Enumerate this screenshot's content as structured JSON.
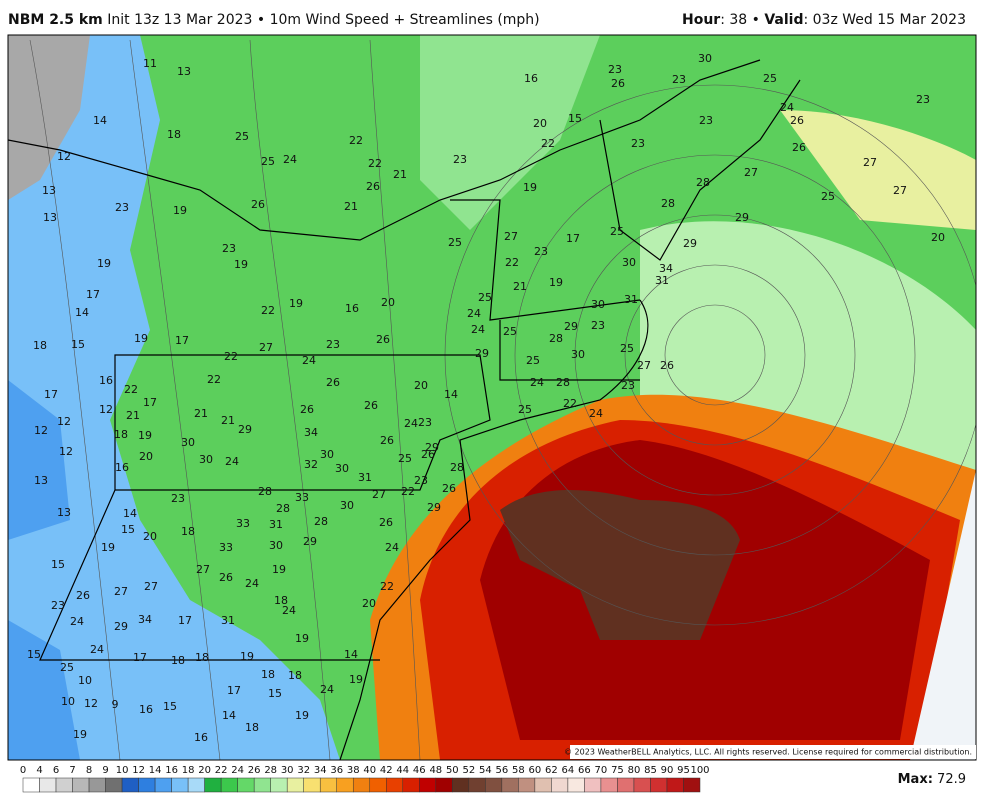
{
  "header": {
    "model": "NBM 2.5 km",
    "description": "Init 13z 13 Mar 2023 • 10m Wind Speed + Streamlines (mph)",
    "hour_label": "Hour",
    "hour_text": ": 38 • ",
    "valid_label": "Valid",
    "valid_text": ": 03z Wed 15 Mar 2023"
  },
  "map": {
    "copyright": "© 2023 WeatherBELL Analytics, LLC. All rights reserved. License required for commercial distribution.",
    "labels": [
      11,
      13,
      14,
      18,
      12,
      13,
      13,
      23,
      19,
      25,
      22,
      16,
      23,
      26,
      23,
      30,
      25,
      24,
      26,
      23,
      20,
      15,
      22,
      23,
      23,
      26,
      27,
      28,
      27,
      25,
      27,
      29,
      28,
      20,
      25,
      29,
      30,
      34,
      31,
      30,
      31,
      29,
      27,
      26,
      28,
      30,
      24,
      28,
      24,
      25,
      24,
      22,
      21,
      23,
      26,
      26,
      21,
      23,
      19,
      25,
      27,
      22,
      23,
      21,
      19,
      17,
      20,
      19,
      22,
      16,
      19,
      17,
      14,
      18,
      15,
      17,
      19,
      22,
      27,
      24,
      23,
      26,
      26,
      20,
      14,
      16,
      17,
      12,
      12,
      12,
      12,
      13,
      13,
      15,
      23,
      26,
      24,
      27,
      29,
      34,
      27,
      17,
      31,
      25,
      24,
      17,
      15,
      10,
      10,
      12,
      9,
      19,
      16,
      15,
      16,
      14,
      18,
      19,
      17,
      15,
      18,
      18,
      19,
      18,
      18,
      19,
      18,
      24,
      19,
      24,
      26,
      27,
      33,
      33,
      31,
      30,
      29,
      28,
      33,
      28,
      30,
      24,
      23,
      18,
      16,
      15,
      14,
      19,
      20,
      21,
      20,
      19,
      18,
      17,
      22,
      22,
      21,
      21,
      30,
      29,
      26,
      34,
      30,
      32,
      30,
      31,
      26,
      26,
      24,
      23,
      29,
      25,
      26,
      28,
      26,
      23,
      22,
      27,
      26,
      24,
      29,
      30,
      28,
      20,
      22,
      14,
      19,
      24,
      19,
      24,
      25,
      24,
      25,
      29,
      25,
      23,
      25,
      23,
      22,
      25
    ]
  },
  "colorbar": {
    "ticks": [
      0,
      4,
      6,
      7,
      8,
      9,
      10,
      12,
      14,
      16,
      18,
      20,
      22,
      24,
      26,
      28,
      30,
      32,
      34,
      36,
      38,
      40,
      42,
      44,
      46,
      48,
      50,
      52,
      54,
      56,
      58,
      60,
      62,
      64,
      66,
      70,
      75,
      80,
      85,
      90,
      95,
      100
    ],
    "colors": [
      "#ffffff",
      "#e8e8e8",
      "#d0d0d0",
      "#b8b8b8",
      "#989898",
      "#707070",
      "#1f5fc4",
      "#2e7fe0",
      "#4ea0f0",
      "#78c0f8",
      "#a8daf8",
      "#20b040",
      "#3cc84c",
      "#64d868",
      "#90e490",
      "#b8f0b0",
      "#e8f0a0",
      "#f8e070",
      "#f8c040",
      "#f8a020",
      "#f08010",
      "#f06000",
      "#e84000",
      "#d82000",
      "#c00000",
      "#a00000",
      "#603020",
      "#704030",
      "#805040",
      "#a07060",
      "#c09080",
      "#e0c0b0",
      "#f0d8d0",
      "#f8e8e0",
      "#f0c0c0",
      "#e89090",
      "#e07070",
      "#d85050",
      "#d03030",
      "#c01818",
      "#a01010"
    ]
  },
  "footer": {
    "max_label": "Max:",
    "max": 72.9
  }
}
